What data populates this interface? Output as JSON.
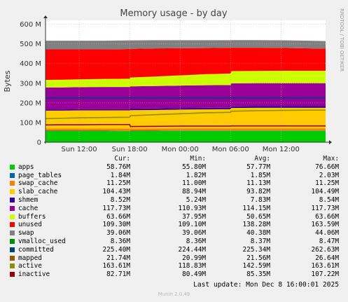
{
  "chart_data": {
    "type": "area",
    "title": "Memory usage - by day",
    "ylabel": "Bytes",
    "side_label": "RRDTOOL / TOBI OETIKER",
    "yticks": [
      "0",
      "100 M",
      "200 M",
      "300 M",
      "400 M",
      "500 M",
      "600 M"
    ],
    "ylim": [
      0,
      620
    ],
    "xticks": [
      {
        "label": "Sun 12:00",
        "x": 4
      },
      {
        "label": "Sun 18:00",
        "x": 10
      },
      {
        "label": "Mon 00:00",
        "x": 16
      },
      {
        "label": "Mon 06:00",
        "x": 22
      },
      {
        "label": "Mon 12:00",
        "x": 28
      }
    ],
    "xlim": [
      0,
      33.3
    ],
    "x": [
      0,
      2,
      4,
      7,
      10,
      10.1,
      13,
      16,
      19,
      22,
      22.1,
      25,
      28,
      31,
      33.3
    ],
    "stacked_series": [
      {
        "name": "apps",
        "color": "#00cc00",
        "values": [
          57,
          57,
          57,
          57,
          56,
          57,
          57,
          58,
          58,
          58,
          58,
          58,
          58,
          58,
          58
        ]
      },
      {
        "name": "page_tables",
        "color": "#0066b3",
        "values": [
          1.8,
          1.8,
          1.8,
          1.8,
          1.8,
          1.8,
          1.8,
          1.8,
          1.8,
          1.8,
          1.8,
          1.8,
          1.8,
          1.8,
          1.8
        ]
      },
      {
        "name": "swap_cache",
        "color": "#ff8000",
        "values": [
          11.2,
          11.2,
          11.2,
          11.2,
          11.2,
          11.2,
          11.2,
          11.2,
          11.2,
          11.2,
          11.2,
          11.2,
          11.2,
          11.2,
          11.2
        ]
      },
      {
        "name": "slab_cache",
        "color": "#ffcc00",
        "values": [
          91,
          91,
          92,
          92,
          93,
          93,
          94,
          95,
          96,
          97,
          103,
          104,
          104,
          104,
          104
        ]
      },
      {
        "name": "shmem",
        "color": "#330099",
        "values": [
          6,
          6,
          6,
          6,
          6,
          8,
          8,
          8,
          8,
          8,
          8.5,
          8.5,
          8.5,
          8.5,
          8.5
        ]
      },
      {
        "name": "cache",
        "color": "#990099",
        "values": [
          112,
          112,
          112,
          113,
          113,
          113,
          114,
          114,
          115,
          115,
          117,
          117,
          117,
          117,
          117
        ]
      },
      {
        "name": "buffers",
        "color": "#ccff00",
        "values": [
          38,
          39,
          40,
          41,
          42,
          45,
          48,
          52,
          56,
          58,
          62,
          62,
          63,
          63,
          63
        ]
      },
      {
        "name": "unused",
        "color": "#ff0000",
        "values": [
          155,
          154,
          152,
          150,
          151,
          146,
          143,
          138,
          133,
          131,
          119,
          118,
          116,
          114,
          112
        ]
      },
      {
        "name": "swap",
        "color": "#808080",
        "values": [
          44,
          44,
          44,
          44,
          44,
          43,
          42,
          41,
          40,
          39,
          39,
          39,
          39,
          39,
          39
        ]
      }
    ],
    "line_series": [
      {
        "name": "committed",
        "color": "#00407d",
        "values": [
          225,
          225,
          225,
          225,
          225,
          225,
          225,
          225,
          225,
          225,
          225,
          225,
          225,
          225,
          225
        ]
      },
      {
        "name": "active",
        "color": "#8f8f00",
        "values": [
          120,
          122,
          124,
          126,
          127,
          135,
          140,
          145,
          150,
          152,
          158,
          160,
          162,
          163,
          163
        ]
      },
      {
        "name": "inactive",
        "color": "#990000",
        "values": [
          88,
          89,
          89,
          90,
          90,
          80,
          81,
          82,
          82,
          82,
          83,
          83,
          83,
          83,
          83
        ]
      }
    ]
  },
  "legend": {
    "headers": [
      "Cur:",
      "Min:",
      "Avg:",
      "Max:"
    ],
    "rows": [
      {
        "name": "apps",
        "color": "#00cc00",
        "cur": "58.76M",
        "min": "55.80M",
        "avg": "57.77M",
        "max": "76.66M"
      },
      {
        "name": "page_tables",
        "color": "#0066b3",
        "cur": "1.84M",
        "min": "1.82M",
        "avg": "1.85M",
        "max": "2.03M"
      },
      {
        "name": "swap_cache",
        "color": "#ff8000",
        "cur": "11.25M",
        "min": "11.00M",
        "avg": "11.13M",
        "max": "11.25M"
      },
      {
        "name": "slab_cache",
        "color": "#ffcc00",
        "cur": "104.43M",
        "min": "88.94M",
        "avg": "93.82M",
        "max": "104.49M"
      },
      {
        "name": "shmem",
        "color": "#330099",
        "cur": "8.52M",
        "min": "5.24M",
        "avg": "7.83M",
        "max": "8.54M"
      },
      {
        "name": "cache",
        "color": "#990099",
        "cur": "117.73M",
        "min": "110.93M",
        "avg": "114.15M",
        "max": "117.73M"
      },
      {
        "name": "buffers",
        "color": "#ccff00",
        "cur": "63.66M",
        "min": "37.95M",
        "avg": "50.65M",
        "max": "63.66M"
      },
      {
        "name": "unused",
        "color": "#ff0000",
        "cur": "109.30M",
        "min": "109.10M",
        "avg": "138.28M",
        "max": "163.59M"
      },
      {
        "name": "swap",
        "color": "#808080",
        "cur": "39.06M",
        "min": "39.06M",
        "avg": "40.38M",
        "max": "44.06M"
      },
      {
        "name": "vmalloc_used",
        "color": "#008f00",
        "cur": "8.36M",
        "min": "8.36M",
        "avg": "8.37M",
        "max": "8.47M"
      },
      {
        "name": "committed",
        "color": "#00407d",
        "cur": "225.40M",
        "min": "224.44M",
        "avg": "225.34M",
        "max": "262.63M"
      },
      {
        "name": "mapped",
        "color": "#8f5a00",
        "cur": "21.74M",
        "min": "20.99M",
        "avg": "21.56M",
        "max": "26.64M"
      },
      {
        "name": "active",
        "color": "#8f8f00",
        "cur": "163.61M",
        "min": "118.83M",
        "avg": "142.59M",
        "max": "163.61M"
      },
      {
        "name": "inactive",
        "color": "#990000",
        "cur": "82.71M",
        "min": "80.49M",
        "avg": "85.35M",
        "max": "107.22M"
      }
    ]
  },
  "footer": {
    "last_update": "Last update: Mon Dec  8 16:00:01 2025",
    "version": "Munin 2.0.49"
  }
}
